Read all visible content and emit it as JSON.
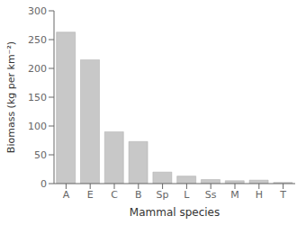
{
  "chart_data": {
    "type": "bar",
    "categories": [
      "A",
      "E",
      "C",
      "B",
      "Sp",
      "L",
      "Ss",
      "M",
      "H",
      "T"
    ],
    "values": [
      263,
      215,
      90,
      73,
      20,
      13,
      7,
      5,
      6,
      2
    ],
    "color": "#c8c8c8",
    "xlabel": "Mammal species",
    "ylabel": "Biomass (kg per km⁻²)",
    "ylim": [
      0,
      300
    ],
    "yticks": [
      0,
      50,
      100,
      150,
      200,
      250,
      300
    ],
    "grid": false
  }
}
